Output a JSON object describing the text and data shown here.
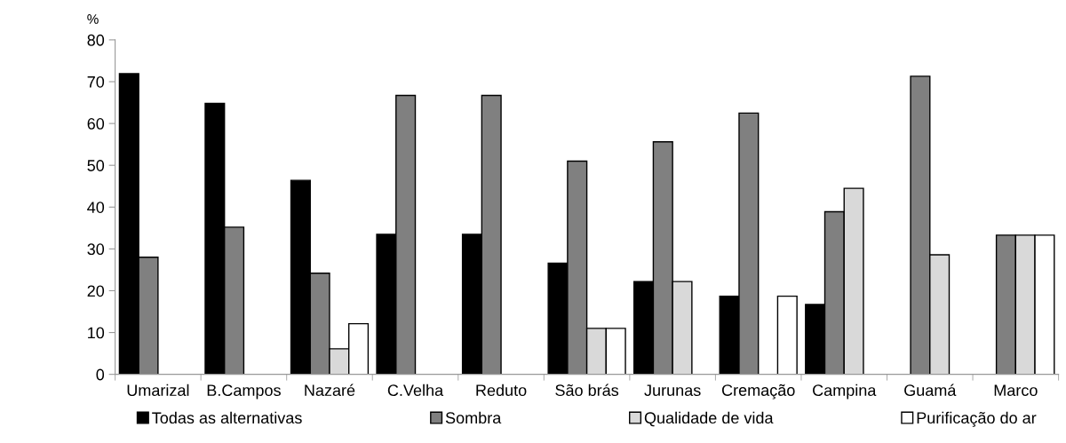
{
  "chart_data": {
    "type": "bar",
    "ylabel": "%",
    "categories": [
      "Umarizal",
      "B.Campos",
      "Nazaré",
      "C.Velha",
      "Reduto",
      "São brás",
      "Jurunas",
      "Cremação",
      "Campina",
      "Guamá",
      "Marco"
    ],
    "series": [
      {
        "name": "Todas as alternativas",
        "color": "#000000",
        "values": [
          71.9,
          64.8,
          46.4,
          33.5,
          33.5,
          26.6,
          22.2,
          18.7,
          16.7,
          null,
          null
        ]
      },
      {
        "name": "Sombra",
        "color": "#808080",
        "values": [
          28.0,
          35.2,
          24.2,
          66.7,
          66.7,
          51.0,
          55.6,
          62.5,
          38.9,
          71.3,
          33.3
        ]
      },
      {
        "name": "Qualidade de vida",
        "color": "#d9d9d9",
        "values": [
          null,
          null,
          6.1,
          null,
          null,
          11.0,
          22.2,
          null,
          44.5,
          28.6,
          33.3
        ]
      },
      {
        "name": "Purificação do ar",
        "color": "#ffffff",
        "values": [
          null,
          null,
          12.1,
          null,
          null,
          11.0,
          null,
          18.7,
          null,
          null,
          33.3
        ]
      }
    ],
    "ylim": [
      0,
      80
    ],
    "yticks": [
      0,
      10,
      20,
      30,
      40,
      50,
      60,
      70,
      80
    ],
    "grid": false,
    "legend": "bottom"
  }
}
